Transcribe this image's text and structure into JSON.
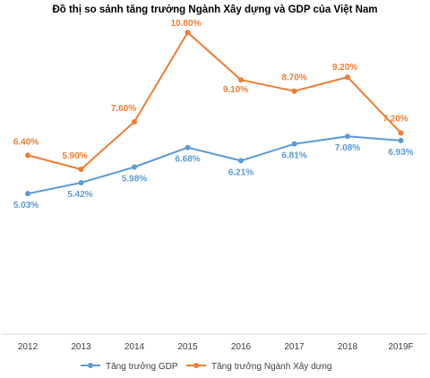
{
  "chart_data": {
    "type": "line",
    "title": "Đồ thị so sánh tăng trưởng Ngành Xây dựng và GDP của Việt Nam",
    "xlabel": "",
    "ylabel": "",
    "categories": [
      "2012",
      "2013",
      "2014",
      "2015",
      "2016",
      "2017",
      "2018",
      "2019F"
    ],
    "ylim": [
      0,
      11
    ],
    "grid": false,
    "legend_position": "bottom",
    "series": [
      {
        "name": "Tăng trưởng GDP",
        "color": "#5B9BD5",
        "values": [
          5.03,
          5.42,
          5.98,
          6.68,
          6.21,
          6.81,
          7.08,
          6.93
        ],
        "labels": [
          "5.03%",
          "5.42%",
          "5.98%",
          "6.68%",
          "6.21%",
          "6.81%",
          "7.08%",
          "6.93%"
        ]
      },
      {
        "name": "Tăng trưởng Ngành Xây dựng",
        "color": "#ED7D31",
        "values": [
          6.4,
          5.9,
          7.6,
          10.8,
          9.1,
          8.7,
          9.2,
          7.2
        ],
        "labels": [
          "6.40%",
          "5.90%",
          "7.60%",
          "10.80%",
          "9.10%",
          "8.70%",
          "9.20%",
          "7.20%"
        ]
      }
    ]
  }
}
